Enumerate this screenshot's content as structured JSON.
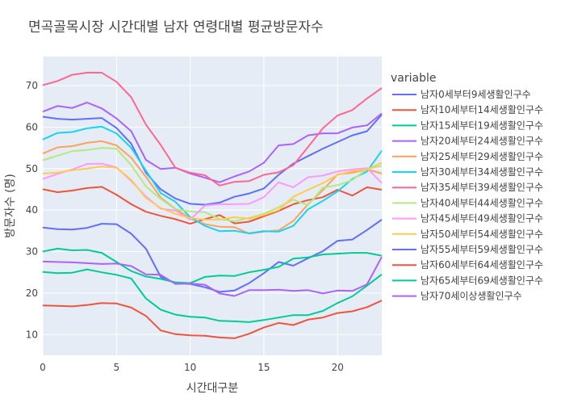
{
  "chart_data": {
    "type": "line",
    "title": "면곡골목시장 시간대별 남자 연령대별 평균방문자수",
    "xlabel": "시간대구분",
    "ylabel": "방문자수 (명)",
    "xlim": [
      0,
      23
    ],
    "ylim": [
      5,
      77
    ],
    "x_ticks": [
      0,
      5,
      10,
      15,
      20
    ],
    "y_ticks": [
      10,
      20,
      30,
      40,
      50,
      60,
      70
    ],
    "grid": true,
    "legend_title": "variable",
    "legend_position": "right",
    "x": [
      0,
      1,
      2,
      3,
      4,
      5,
      6,
      7,
      8,
      9,
      10,
      11,
      12,
      13,
      14,
      15,
      16,
      17,
      18,
      19,
      20,
      21,
      22,
      23
    ],
    "series": [
      {
        "name": "남자0세부터9세생활인구수",
        "color": "#636efa",
        "values": [
          62.5,
          62.0,
          61.8,
          62.0,
          62.2,
          59.8,
          56.0,
          49.0,
          45.0,
          42.8,
          41.5,
          41.3,
          41.8,
          43.2,
          44.0,
          45.2,
          48.5,
          51.2,
          53.0,
          54.8,
          56.4,
          58.0,
          59.0,
          63.0
        ]
      },
      {
        "name": "남자10세부터14세생활인구수",
        "color": "#EF553B",
        "values": [
          45.0,
          44.3,
          44.7,
          45.3,
          45.6,
          43.7,
          41.4,
          39.6,
          38.6,
          37.8,
          36.7,
          37.8,
          38.8,
          36.8,
          37.2,
          38.5,
          39.8,
          41.4,
          42.4,
          43.1,
          44.9,
          43.5,
          45.5,
          44.9
        ]
      },
      {
        "name": "남자15세부터19세생활인구수",
        "color": "#00cc96",
        "values": [
          25.1,
          24.8,
          24.9,
          25.7,
          25.0,
          24.4,
          23.5,
          18.7,
          16.0,
          14.8,
          14.3,
          14.1,
          13.3,
          13.2,
          13.0,
          13.5,
          14.1,
          14.7,
          14.7,
          15.7,
          17.6,
          19.2,
          21.8,
          24.5
        ]
      },
      {
        "name": "남자20세부터24세생활인구수",
        "color": "#ab63fa",
        "values": [
          63.7,
          65.1,
          64.6,
          65.9,
          64.5,
          62.1,
          59.0,
          52.1,
          49.9,
          50.2,
          48.8,
          47.8,
          46.7,
          48.1,
          49.3,
          51.4,
          55.6,
          55.9,
          58.0,
          58.5,
          58.5,
          59.9,
          60.4,
          63.3
        ]
      },
      {
        "name": "남자25세부터29세생활인구수",
        "color": "#FFA15A",
        "values": [
          53.6,
          55.1,
          55.4,
          56.2,
          56.6,
          55.6,
          52.6,
          48.0,
          43.0,
          40.3,
          38.0,
          36.6,
          36.0,
          35.9,
          34.3,
          34.8,
          35.1,
          37.4,
          41.4,
          44.8,
          48.6,
          49.0,
          49.8,
          48.8
        ]
      },
      {
        "name": "남자30세부터34세생활인구수",
        "color": "#19d3f3",
        "values": [
          57.0,
          58.6,
          58.8,
          59.7,
          60.1,
          58.5,
          55.0,
          49.5,
          44.1,
          42.0,
          38.3,
          36.2,
          34.9,
          35.0,
          34.4,
          34.9,
          34.8,
          36.2,
          40.2,
          42.2,
          44.5,
          47.5,
          49.3,
          54.3
        ]
      },
      {
        "name": "남자35세부터39세생활인구수",
        "color": "#FF6692",
        "values": [
          70.1,
          71.1,
          72.6,
          73.1,
          73.1,
          70.9,
          67.2,
          60.6,
          55.7,
          50.2,
          49.0,
          48.4,
          45.9,
          46.8,
          47.0,
          48.5,
          49.1,
          50.8,
          55.2,
          59.7,
          62.8,
          64.1,
          66.9,
          69.4
        ]
      },
      {
        "name": "남자40세부터44세생활인구수",
        "color": "#B6E880",
        "values": [
          52.0,
          53.1,
          54.2,
          54.5,
          55.0,
          54.8,
          50.8,
          45.7,
          42.7,
          40.2,
          39.7,
          39.5,
          37.8,
          37.3,
          38.1,
          39.1,
          40.7,
          42.5,
          41.2,
          45.4,
          46.0,
          47.2,
          49.9,
          50.7
        ]
      },
      {
        "name": "남자45세부터49세생활인구수",
        "color": "#FF97FF",
        "values": [
          47.5,
          48.7,
          49.8,
          51.1,
          51.2,
          50.3,
          47.0,
          43.3,
          40.3,
          39.9,
          37.7,
          41.1,
          41.4,
          41.4,
          41.5,
          43.1,
          46.7,
          45.5,
          47.9,
          48.3,
          49.3,
          49.8,
          50.1,
          46.5
        ]
      },
      {
        "name": "남자50세부터54세생활인구수",
        "color": "#FECB52",
        "values": [
          48.8,
          49.0,
          49.6,
          50.0,
          50.5,
          50.2,
          47.3,
          42.9,
          40.5,
          39.1,
          38.1,
          37.7,
          37.7,
          38.3,
          37.9,
          38.8,
          40.0,
          43.2,
          44.9,
          46.5,
          48.5,
          49.4,
          49.8,
          51.4
        ]
      },
      {
        "name": "남자55세부터59세생활인구수",
        "color": "#636efa",
        "values": [
          35.8,
          35.4,
          35.3,
          35.7,
          36.7,
          36.6,
          34.3,
          30.7,
          23.9,
          22.4,
          22.2,
          21.4,
          20.3,
          20.6,
          22.4,
          24.8,
          27.5,
          26.6,
          28.4,
          30.1,
          32.6,
          32.9,
          35.2,
          37.7
        ]
      },
      {
        "name": "남자60세부터64세생활인구수",
        "color": "#EF553B",
        "values": [
          17.0,
          16.9,
          16.8,
          17.1,
          17.6,
          17.5,
          16.5,
          14.5,
          11.0,
          10.1,
          9.8,
          9.7,
          9.3,
          9.1,
          10.2,
          11.7,
          12.8,
          12.3,
          13.6,
          14.1,
          15.2,
          15.6,
          16.6,
          18.2
        ]
      },
      {
        "name": "남자65세부터69세생활인구수",
        "color": "#00cc96",
        "values": [
          30.0,
          30.7,
          30.3,
          30.4,
          29.7,
          27.5,
          25.3,
          24.0,
          23.4,
          22.6,
          22.4,
          23.9,
          24.2,
          24.1,
          25.0,
          25.6,
          26.3,
          28.3,
          28.6,
          29.3,
          29.5,
          29.7,
          29.7,
          29.0
        ]
      },
      {
        "name": "남자70세이상생활인구수",
        "color": "#ab63fa",
        "values": [
          27.6,
          27.5,
          27.4,
          27.2,
          27.0,
          27.1,
          26.5,
          24.5,
          24.4,
          22.2,
          22.3,
          22.0,
          19.9,
          19.3,
          20.7,
          20.7,
          20.8,
          20.5,
          20.7,
          19.9,
          20.6,
          20.5,
          22.1,
          28.7
        ]
      }
    ]
  }
}
